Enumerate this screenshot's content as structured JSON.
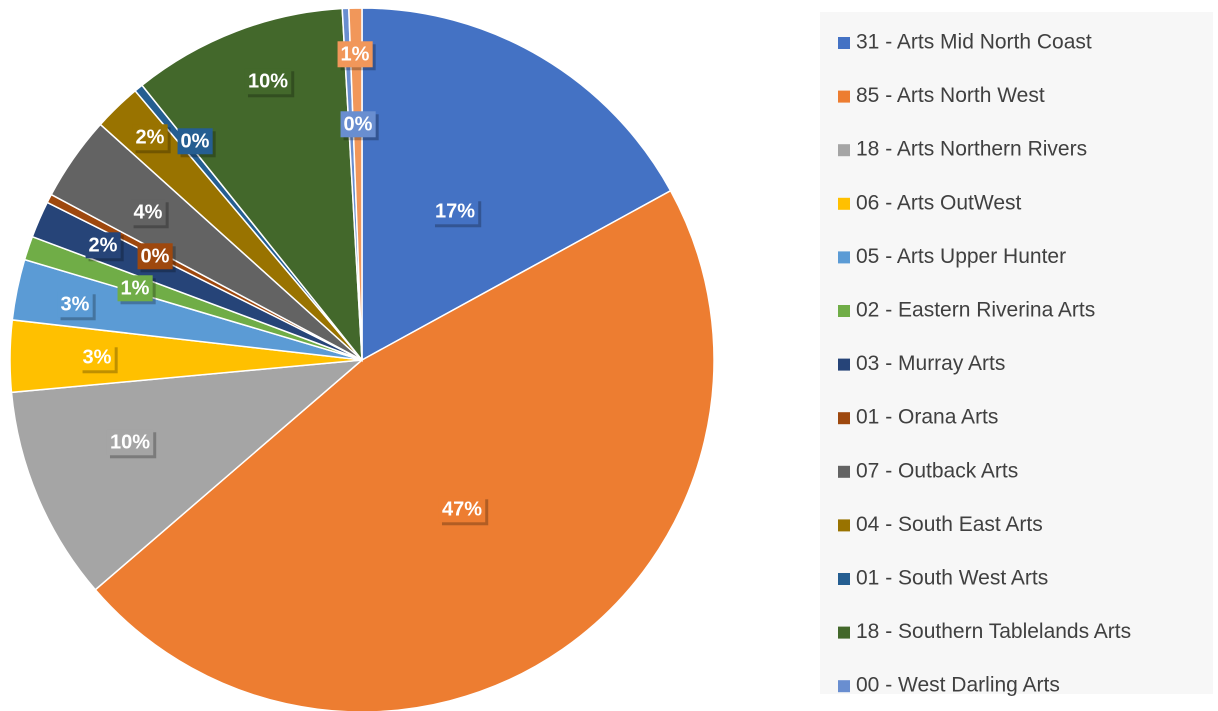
{
  "chart_data": {
    "type": "pie",
    "categories": [
      "31 - Arts Mid North Coast",
      "85 - Arts North West",
      "18 - Arts Northern Rivers",
      "06 - Arts OutWest",
      "05 - Arts Upper Hunter",
      "02 - Eastern Riverina Arts",
      "03 - Murray Arts",
      "01 - Orana Arts",
      "07 - Outback Arts",
      "04 - South East Arts",
      "01 - South West Arts",
      "18 - Southern Tablelands Arts",
      "00 - West Darling Arts",
      null
    ],
    "values": [
      17.1,
      46.9,
      9.9,
      3.3,
      2.8,
      1.1,
      1.7,
      0.4,
      3.9,
      2.2,
      0.4,
      9.9,
      0.3,
      0.6
    ],
    "value_labels": [
      "17%",
      "47%",
      "10%",
      "3%",
      "3%",
      "1%",
      "2%",
      "0%",
      "4%",
      "2%",
      "0%",
      "10%",
      "0%",
      "1%"
    ],
    "colors": [
      "#4472c4",
      "#ed7d31",
      "#a5a5a5",
      "#ffc000",
      "#5b9bd5",
      "#70ad47",
      "#264478",
      "#9e480e",
      "#636363",
      "#997300",
      "#255e91",
      "#43682b",
      "#698ed0",
      "#f1975a"
    ],
    "legend": "right"
  }
}
